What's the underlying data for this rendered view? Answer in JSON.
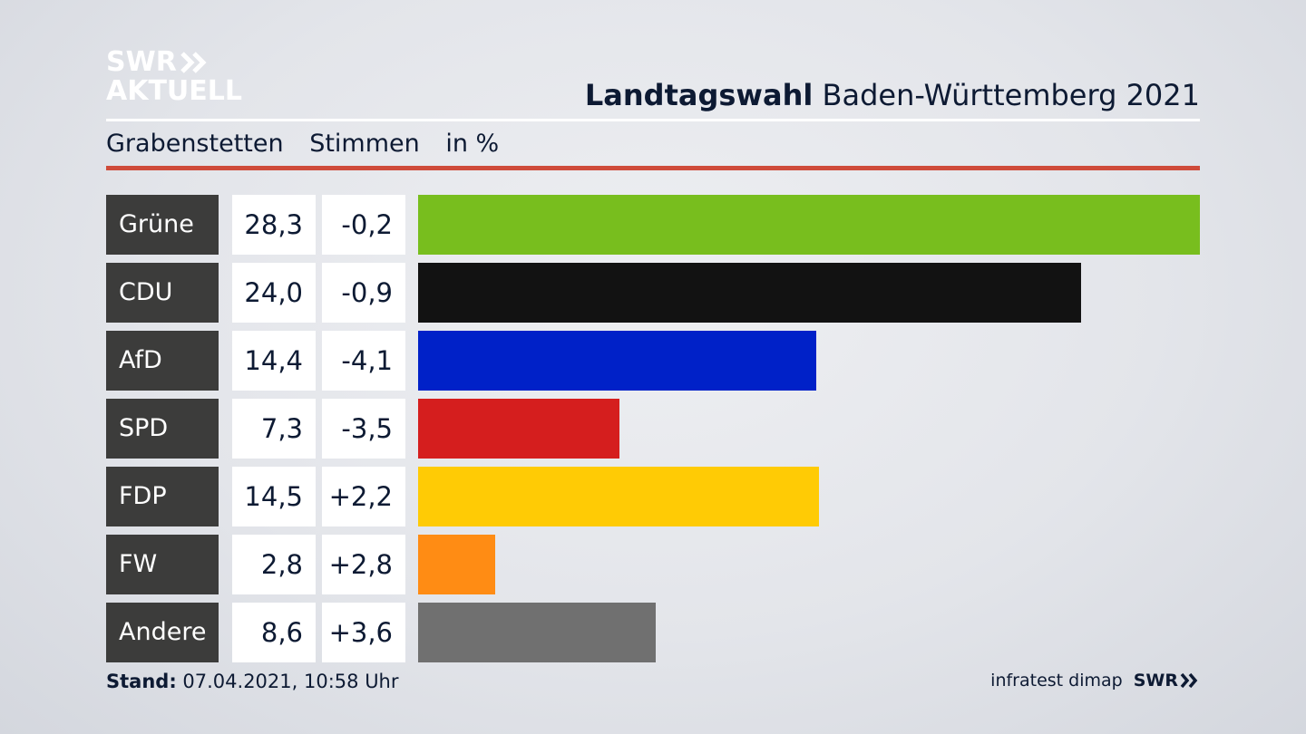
{
  "brand": {
    "line1": "SWR",
    "line2": "AKTUELL"
  },
  "header": {
    "title_bold": "Landtagswahl",
    "title_rest": "Baden-Württemberg 2021"
  },
  "subtitle": {
    "place": "Grabenstetten",
    "measure": "Stimmen",
    "unit": "in %"
  },
  "footer": {
    "stand_label": "Stand:",
    "stand_value": "07.04.2021, 10:58 Uhr",
    "source": "infratest dimap",
    "source_brand": "SWR"
  },
  "chart_data": {
    "type": "bar",
    "orientation": "horizontal",
    "categories": [
      "Grüne",
      "CDU",
      "AfD",
      "SPD",
      "FDP",
      "FW",
      "Andere"
    ],
    "values": [
      28.3,
      24.0,
      14.4,
      7.3,
      14.5,
      2.8,
      8.6
    ],
    "value_labels": [
      "28,3",
      "24,0",
      "14,4",
      "7,3",
      "14,5",
      "2,8",
      "8,6"
    ],
    "diff_labels": [
      "-0,2",
      "-0,9",
      "-4,1",
      "-3,5",
      "+2,2",
      "+2,8",
      "+3,6"
    ],
    "colors": [
      "#78be1e",
      "#121212",
      "#0021c8",
      "#d51e1e",
      "#ffcb05",
      "#ff8c14",
      "#707070"
    ],
    "xlim": [
      0,
      28.3
    ],
    "grid": false
  }
}
